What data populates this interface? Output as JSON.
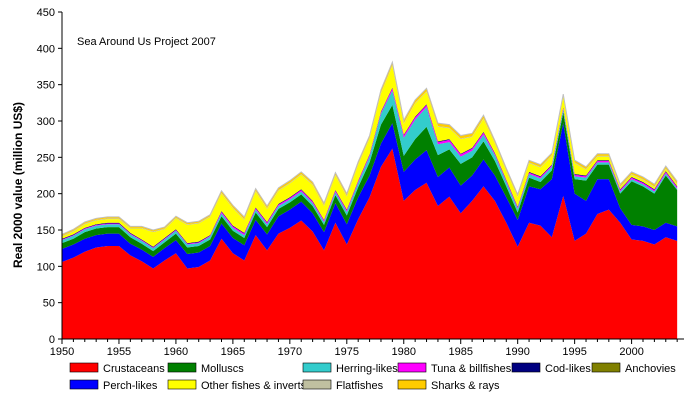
{
  "chart_data": {
    "type": "area",
    "stacked": true,
    "title": "",
    "annotation": "Sea Around Us Project 2007",
    "xlabel": "",
    "ylabel": "Real 2000 value (million US$)",
    "xlim": [
      1950,
      2004
    ],
    "ylim": [
      0,
      450
    ],
    "x_ticks": [
      1950,
      1955,
      1960,
      1965,
      1970,
      1975,
      1980,
      1985,
      1990,
      1995,
      2000
    ],
    "y_ticks": [
      0,
      50,
      100,
      150,
      200,
      250,
      300,
      350,
      400,
      450
    ],
    "x": [
      1950,
      1951,
      1952,
      1953,
      1954,
      1955,
      1956,
      1957,
      1958,
      1959,
      1960,
      1961,
      1962,
      1963,
      1964,
      1965,
      1966,
      1967,
      1968,
      1969,
      1970,
      1971,
      1972,
      1973,
      1974,
      1975,
      1976,
      1977,
      1978,
      1979,
      1980,
      1981,
      1982,
      1983,
      1984,
      1985,
      1986,
      1987,
      1988,
      1989,
      1990,
      1991,
      1992,
      1993,
      1994,
      1995,
      1996,
      1997,
      1998,
      1999,
      2000,
      2001,
      2002,
      2003,
      2004
    ],
    "series": [
      {
        "name": "Crustaceans",
        "color": "#ff0000",
        "values": [
          106,
          112,
          120,
          126,
          128,
          128,
          115,
          107,
          97,
          108,
          118,
          97,
          99,
          108,
          138,
          118,
          108,
          143,
          122,
          145,
          153,
          163,
          148,
          122,
          160,
          130,
          165,
          195,
          237,
          262,
          190,
          205,
          215,
          183,
          196,
          173,
          190,
          210,
          190,
          160,
          127,
          160,
          156,
          140,
          197,
          135,
          145,
          172,
          178,
          160,
          137,
          135,
          130,
          140,
          135
        ]
      },
      {
        "name": "Perch-likes",
        "color": "#0000ff",
        "values": [
          18,
          18,
          18,
          17,
          17,
          17,
          16,
          16,
          16,
          17,
          18,
          20,
          20,
          20,
          21,
          21,
          21,
          21,
          22,
          24,
          25,
          26,
          25,
          25,
          27,
          28,
          30,
          30,
          32,
          35,
          40,
          42,
          45,
          40,
          40,
          38,
          35,
          37,
          35,
          35,
          37,
          50,
          50,
          80,
          100,
          65,
          45,
          48,
          42,
          20,
          20,
          20,
          20,
          20,
          20
        ]
      },
      {
        "name": "Molluscs",
        "color": "#008000",
        "values": [
          8,
          8,
          9,
          9,
          9,
          9,
          9,
          8,
          8,
          8,
          9,
          9,
          9,
          9,
          10,
          10,
          10,
          10,
          10,
          10,
          10,
          10,
          10,
          10,
          11,
          12,
          14,
          18,
          26,
          25,
          22,
          28,
          32,
          30,
          25,
          30,
          25,
          25,
          20,
          15,
          10,
          12,
          10,
          12,
          15,
          20,
          28,
          20,
          20,
          20,
          60,
          55,
          50,
          65,
          50
        ]
      },
      {
        "name": "Herring-likes",
        "color": "#33cccc",
        "values": [
          4,
          4,
          4,
          4,
          4,
          4,
          4,
          4,
          4,
          4,
          4,
          4,
          4,
          4,
          4,
          4,
          4,
          4,
          4,
          4,
          4,
          4,
          4,
          4,
          4,
          5,
          6,
          8,
          15,
          20,
          25,
          27,
          27,
          15,
          10,
          10,
          9,
          9,
          8,
          6,
          5,
          5,
          5,
          5,
          4,
          4,
          4,
          3,
          3,
          3,
          3,
          3,
          3,
          3,
          2
        ]
      },
      {
        "name": "Tuna & billfishes",
        "color": "#ff00ff",
        "values": [
          1,
          1,
          1,
          1,
          1,
          1,
          1,
          1,
          1,
          1,
          1,
          1,
          1,
          1,
          2,
          2,
          2,
          2,
          2,
          2,
          2,
          2,
          2,
          2,
          2,
          2,
          2,
          2,
          2,
          3,
          3,
          3,
          3,
          3,
          3,
          3,
          3,
          3,
          2,
          2,
          2,
          2,
          2,
          2,
          2,
          2,
          2,
          2,
          2,
          2,
          2,
          2,
          2,
          2,
          2
        ]
      },
      {
        "name": "Cod-likes",
        "color": "#000080",
        "values": [
          1,
          1,
          1,
          1,
          1,
          1,
          1,
          1,
          1,
          1,
          1,
          1,
          1,
          1,
          1,
          1,
          1,
          1,
          1,
          1,
          1,
          1,
          1,
          1,
          1,
          1,
          1,
          1,
          1,
          1,
          1,
          1,
          1,
          1,
          1,
          1,
          1,
          1,
          1,
          1,
          1,
          1,
          1,
          1,
          1,
          1,
          1,
          1,
          1,
          1,
          1,
          1,
          1,
          1,
          1
        ]
      },
      {
        "name": "Anchovies",
        "color": "#808000",
        "values": [
          0,
          0,
          0,
          0,
          0,
          0,
          0,
          0,
          0,
          0,
          0,
          0,
          0,
          0,
          0,
          0,
          0,
          0,
          0,
          0,
          0,
          0,
          0,
          0,
          0,
          0,
          0,
          0,
          0,
          0,
          0,
          0,
          0,
          0,
          0,
          0,
          0,
          0,
          0,
          0,
          0,
          0,
          0,
          0,
          0,
          0,
          0,
          0,
          0,
          0,
          0,
          0,
          0,
          0,
          0
        ]
      },
      {
        "name": "Other fishes & inverts",
        "color": "#ffff00",
        "values": [
          3,
          4,
          5,
          5,
          5,
          5,
          6,
          15,
          20,
          12,
          15,
          25,
          25,
          25,
          24,
          24,
          18,
          22,
          18,
          18,
          19,
          20,
          22,
          19,
          20,
          18,
          22,
          22,
          25,
          30,
          15,
          18,
          17,
          20,
          15,
          20,
          15,
          18,
          13,
          12,
          13,
          12,
          12,
          12,
          14,
          15,
          8,
          5,
          5,
          3,
          3,
          3,
          3,
          3,
          3
        ]
      },
      {
        "name": "Flatfishes",
        "color": "#c0c0a0",
        "values": [
          1,
          1,
          1,
          1,
          1,
          1,
          1,
          1,
          1,
          1,
          1,
          1,
          1,
          1,
          1,
          1,
          1,
          1,
          1,
          1,
          1,
          1,
          1,
          1,
          1,
          1,
          1,
          1,
          1,
          1,
          1,
          1,
          1,
          1,
          1,
          1,
          1,
          1,
          1,
          1,
          1,
          1,
          1,
          1,
          1,
          1,
          1,
          1,
          1,
          1,
          1,
          1,
          1,
          1,
          1
        ]
      },
      {
        "name": "Sharks & rays",
        "color": "#ffcc00",
        "values": [
          2,
          2,
          2,
          2,
          2,
          2,
          2,
          2,
          2,
          2,
          2,
          2,
          2,
          2,
          3,
          3,
          3,
          3,
          3,
          3,
          3,
          3,
          3,
          3,
          3,
          3,
          3,
          3,
          4,
          4,
          4,
          4,
          4,
          4,
          4,
          4,
          4,
          4,
          3,
          3,
          3,
          3,
          3,
          3,
          3,
          3,
          3,
          3,
          3,
          3,
          3,
          3,
          3,
          3,
          3
        ]
      }
    ],
    "legend": {
      "placement": "bottom",
      "rows": [
        [
          "Crustaceans",
          "Molluscs",
          "Herring-likes",
          "Tuna & billfishes",
          "Cod-likes",
          "Anchovies"
        ],
        [
          "Perch-likes",
          "Other fishes & inverts",
          "Flatfishes",
          "Sharks & rays"
        ]
      ]
    },
    "grid": false
  }
}
